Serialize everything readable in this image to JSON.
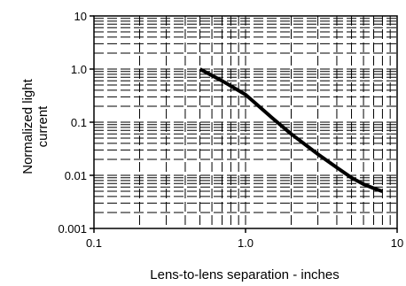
{
  "chart_data": {
    "type": "line",
    "title": "",
    "xlabel": "Lens-to-lens separation - inches",
    "ylabel_lines": [
      "Normalized light",
      "current"
    ],
    "x_scale": "log",
    "y_scale": "log",
    "xlim": [
      0.1,
      10
    ],
    "ylim": [
      0.001,
      10
    ],
    "x_ticks": [
      {
        "value": 0.1,
        "label": "0.1"
      },
      {
        "value": 1,
        "label": "1.0"
      },
      {
        "value": 10,
        "label": "10"
      }
    ],
    "y_ticks": [
      {
        "value": 0.001,
        "label": "0.001"
      },
      {
        "value": 0.01,
        "label": "0.01"
      },
      {
        "value": 0.1,
        "label": "0.1"
      },
      {
        "value": 1,
        "label": "1.0"
      },
      {
        "value": 10,
        "label": "10"
      }
    ],
    "grid": "dashed minor log grid",
    "series": [
      {
        "color": "#000000",
        "x": [
          0.5,
          0.7,
          1.0,
          1.5,
          2.0,
          3.0,
          4.0,
          5.0,
          6.0,
          7.0,
          8.0
        ],
        "y": [
          1.0,
          0.6,
          0.33,
          0.12,
          0.06,
          0.025,
          0.014,
          0.009,
          0.0068,
          0.0057,
          0.005
        ]
      }
    ]
  }
}
